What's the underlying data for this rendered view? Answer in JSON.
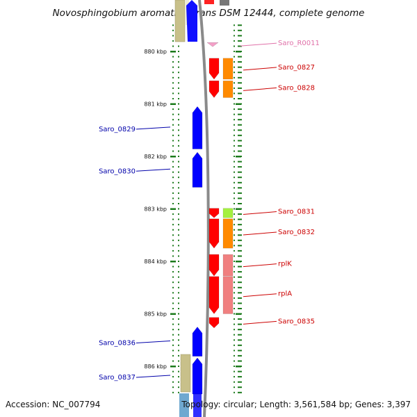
{
  "title": "Novosphingobium aromaticivorans DSM 12444, complete genome",
  "footer": {
    "accession": "Accession: NC_007794",
    "summary": "Topology: circular; Length: 3,561,584 bp; Genes: 3,397"
  },
  "colors": {
    "tick": "#1b7a1b",
    "backbone": "#8a8a8a",
    "forward_gene": "#ff0000",
    "reverse_gene": "#0000ff",
    "forward_label": "#cc0000",
    "reverse_label": "#0000aa",
    "rna_gene": "#f4a0c8",
    "rna_label": "#e070a8"
  },
  "scale": {
    "unit": "kbp",
    "major_ticks": [
      880,
      881,
      882,
      883,
      884,
      885,
      886
    ],
    "minor_step_kbp": 0.1
  },
  "genes": [
    {
      "label": "Saro_R0011",
      "strand": "forward",
      "type": "rna",
      "start_kbp": 879.83,
      "end_kbp": 879.91
    },
    {
      "label": "Saro_0827",
      "strand": "forward",
      "type": "cds",
      "start_kbp": 880.13,
      "end_kbp": 880.53
    },
    {
      "label": "Saro_0828",
      "strand": "forward",
      "type": "cds",
      "start_kbp": 880.56,
      "end_kbp": 880.88
    },
    {
      "label": "Saro_0829",
      "strand": "reverse",
      "type": "cds",
      "start_kbp": 881.05,
      "end_kbp": 881.86
    },
    {
      "label": "Saro_0830",
      "strand": "reverse",
      "type": "cds",
      "start_kbp": 881.92,
      "end_kbp": 882.59
    },
    {
      "label": "Saro_0831",
      "strand": "forward",
      "type": "cds",
      "start_kbp": 882.99,
      "end_kbp": 883.17
    },
    {
      "label": "Saro_0832",
      "strand": "forward",
      "type": "cds",
      "start_kbp": 883.19,
      "end_kbp": 883.75
    },
    {
      "label": "rplK",
      "strand": "forward",
      "type": "cds",
      "start_kbp": 883.87,
      "end_kbp": 884.28
    },
    {
      "label": "rplA",
      "strand": "forward",
      "type": "cds",
      "start_kbp": 884.29,
      "end_kbp": 885.0
    },
    {
      "label": "Saro_0835",
      "strand": "forward",
      "type": "cds",
      "start_kbp": 885.07,
      "end_kbp": 885.27
    },
    {
      "label": "Saro_0836",
      "strand": "reverse",
      "type": "cds",
      "start_kbp": 885.25,
      "end_kbp": 885.81
    },
    {
      "label": "Saro_0837",
      "strand": "reverse",
      "type": "cds",
      "start_kbp": 885.84,
      "end_kbp": 886.53
    }
  ]
}
